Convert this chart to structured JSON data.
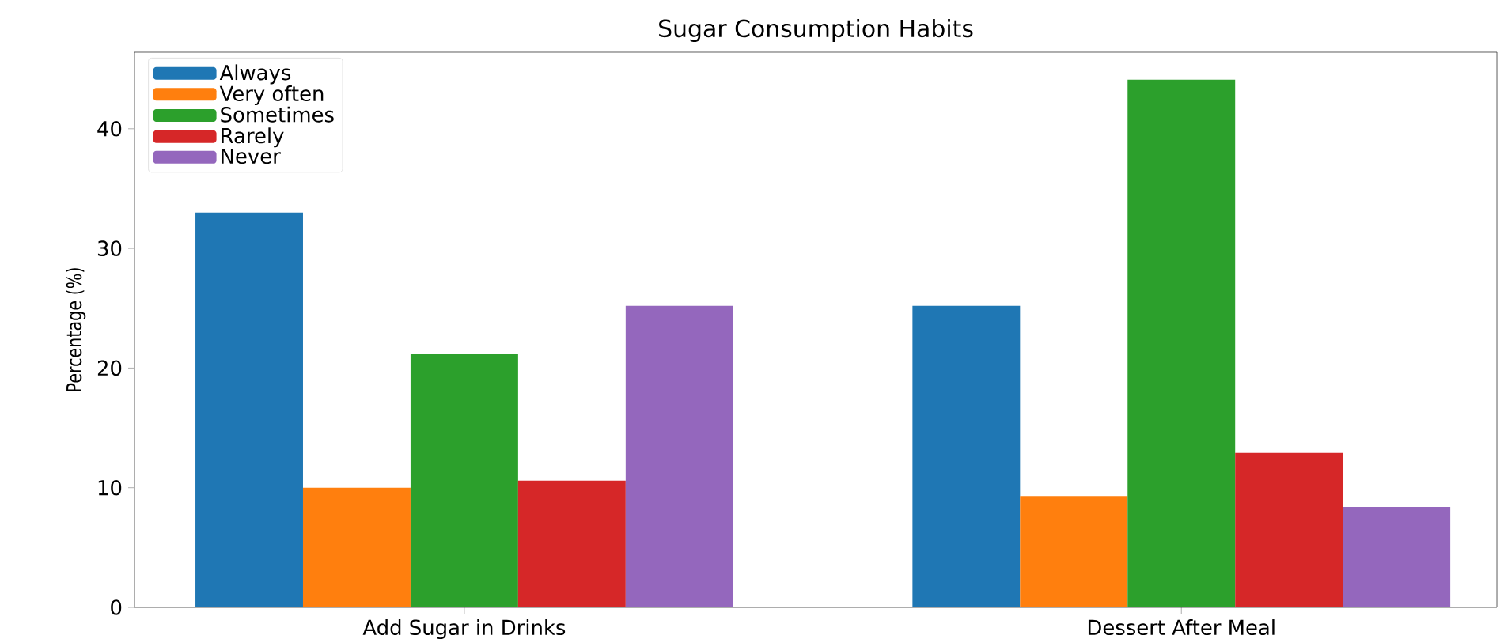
{
  "chart_data": {
    "type": "bar",
    "title": "Sugar Consumption Habits",
    "ylabel": "Percentage (%)",
    "categories": [
      "Add Sugar in Drinks",
      "Dessert After Meal"
    ],
    "series": [
      {
        "name": "Always",
        "color": "#1f77b4",
        "values": [
          33.0,
          25.2
        ]
      },
      {
        "name": "Very often",
        "color": "#ff7f0e",
        "values": [
          10.0,
          9.3
        ]
      },
      {
        "name": "Sometimes",
        "color": "#2ca02c",
        "values": [
          21.2,
          44.1
        ]
      },
      {
        "name": "Rarely",
        "color": "#d62728",
        "values": [
          10.6,
          12.9
        ]
      },
      {
        "name": "Never",
        "color": "#9467bd",
        "values": [
          25.2,
          8.4
        ]
      }
    ],
    "ylim": [
      0,
      46.4
    ],
    "yticks": [
      0,
      10,
      20,
      30,
      40
    ],
    "grid": false,
    "legend": "top left"
  }
}
